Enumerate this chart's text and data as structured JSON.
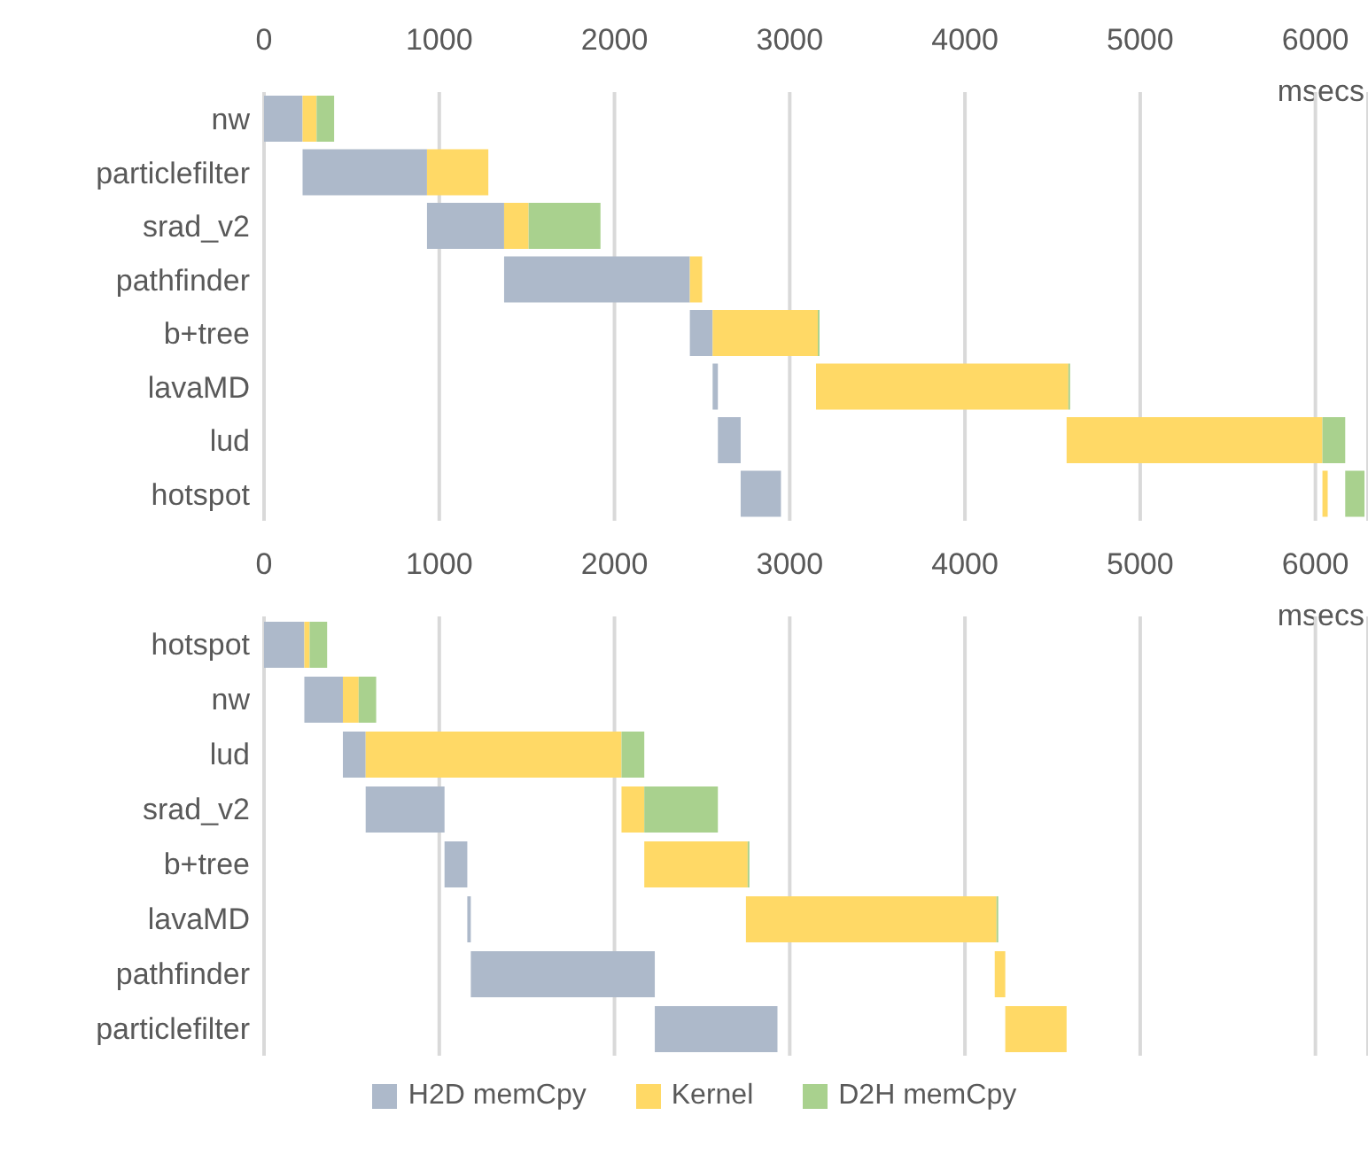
{
  "chart_data": [
    {
      "type": "bar",
      "orientation": "horizontal",
      "xlabel": "msecs",
      "categories": [
        "nw",
        "particlefilter",
        "srad_v2",
        "pathfinder",
        "b+tree",
        "lavaMD",
        "lud",
        "hotspot"
      ],
      "xlim": [
        0,
        6300
      ],
      "xticks": [
        0,
        1000,
        2000,
        3000,
        4000,
        5000,
        6000
      ],
      "grid": "x",
      "legend": false,
      "series": [
        {
          "color": "#adb9ca",
          "base": [
            0,
            220,
            930,
            1370,
            2430,
            2560,
            2590,
            2720
          ],
          "values": [
            220,
            710,
            440,
            1060,
            130,
            30,
            130,
            230
          ]
        },
        {
          "color": "#ffd966",
          "base": [
            220,
            930,
            1370,
            2430,
            2560,
            3150,
            4580,
            6040
          ],
          "values": [
            80,
            350,
            140,
            70,
            600,
            1440,
            1460,
            30
          ]
        },
        {
          "color": "#a9d18e",
          "base": [
            300,
            null,
            1510,
            null,
            3160,
            4590,
            6040,
            6170
          ],
          "values": [
            100,
            null,
            410,
            null,
            10,
            10,
            130,
            110
          ]
        }
      ]
    },
    {
      "type": "bar",
      "orientation": "horizontal",
      "xlabel": "msecs",
      "categories": [
        "hotspot",
        "nw",
        "lud",
        "srad_v2",
        "b+tree",
        "lavaMD",
        "pathfinder",
        "particlefilter"
      ],
      "xlim": [
        0,
        6300
      ],
      "xticks": [
        0,
        1000,
        2000,
        3000,
        4000,
        5000,
        6000
      ],
      "grid": "x",
      "legend": "bottom",
      "series": [
        {
          "name": "H2D memCpy",
          "color": "#adb9ca",
          "base": [
            0,
            230,
            450,
            580,
            1030,
            1160,
            1180,
            2230
          ],
          "values": [
            230,
            220,
            130,
            450,
            130,
            20,
            1050,
            700
          ]
        },
        {
          "name": "Kernel",
          "color": "#ffd966",
          "base": [
            230,
            450,
            580,
            2040,
            2170,
            2750,
            4170,
            4230
          ],
          "values": [
            30,
            90,
            1460,
            130,
            590,
            1430,
            60,
            350
          ]
        },
        {
          "name": "D2H memCpy",
          "color": "#a9d18e",
          "base": [
            260,
            540,
            2040,
            2170,
            2760,
            4180,
            null,
            null
          ],
          "values": [
            100,
            100,
            130,
            420,
            10,
            10,
            null,
            null
          ]
        }
      ]
    }
  ]
}
